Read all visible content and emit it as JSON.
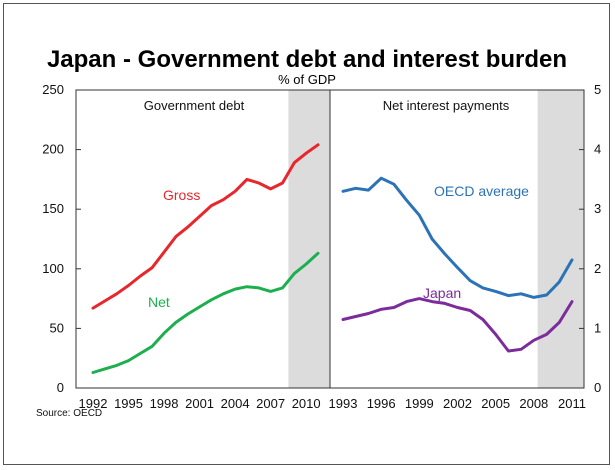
{
  "chart_data": {
    "title": "Japan - Government debt and interest burden",
    "subtitle": "% of GDP",
    "source": "Source: OECD",
    "left_axis_ticks": [
      "0",
      "50",
      "100",
      "150",
      "200",
      "250"
    ],
    "right_axis_ticks": [
      "0",
      "1",
      "2",
      "3",
      "4",
      "5"
    ],
    "panels": [
      {
        "title": "Government debt",
        "type": "line",
        "x_ticks": [
          "1992",
          "1995",
          "1998",
          "2001",
          "2004",
          "2007",
          "2010"
        ],
        "xlim": [
          1992,
          2011
        ],
        "ylim": [
          0,
          250
        ],
        "shaded_x": [
          2008.5,
          2011.3
        ],
        "series": [
          {
            "name": "Gross",
            "color": "#e8262b",
            "x": [
              1992,
              1993,
              1994,
              1995,
              1996,
              1997,
              1998,
              1999,
              2000,
              2001,
              2002,
              2003,
              2004,
              2005,
              2006,
              2007,
              2008,
              2009,
              2010,
              2011
            ],
            "values": [
              67,
              73,
              79,
              86,
              94,
              101,
              114,
              127,
              135,
              144,
              153,
              158,
              165,
              175,
              172,
              167,
              172,
              189,
              197,
              204
            ]
          },
          {
            "name": "Net",
            "color": "#1daf4f",
            "x": [
              1992,
              1993,
              1994,
              1995,
              1996,
              1997,
              1998,
              1999,
              2000,
              2001,
              2002,
              2003,
              2004,
              2005,
              2006,
              2007,
              2008,
              2009,
              2010,
              2011
            ],
            "values": [
              13,
              16,
              19,
              23,
              29,
              35,
              46,
              55,
              62,
              68,
              74,
              79,
              83,
              85,
              84,
              81,
              84,
              96,
              104,
              113
            ]
          }
        ]
      },
      {
        "title": "Net interest payments",
        "type": "line",
        "x_ticks": [
          "1993",
          "1996",
          "1999",
          "2002",
          "2005",
          "2008",
          "2011"
        ],
        "xlim": [
          1993,
          2011
        ],
        "ylim": [
          0,
          5
        ],
        "shaded_x": [
          2008.3,
          2011.3
        ],
        "series": [
          {
            "name": "OECD average",
            "color": "#2b73b6",
            "x": [
              1993,
              1994,
              1995,
              1996,
              1997,
              1998,
              1999,
              2000,
              2001,
              2002,
              2003,
              2004,
              2005,
              2006,
              2007,
              2008,
              2009,
              2010,
              2011
            ],
            "values": [
              3.3,
              3.35,
              3.32,
              3.52,
              3.42,
              3.15,
              2.9,
              2.5,
              2.25,
              2.02,
              1.8,
              1.68,
              1.62,
              1.55,
              1.58,
              1.52,
              1.56,
              1.78,
              2.15
            ]
          },
          {
            "name": "Japan",
            "color": "#7b2c9a",
            "x": [
              1993,
              1994,
              1995,
              1996,
              1997,
              1998,
              1999,
              2000,
              2001,
              2002,
              2003,
              2004,
              2005,
              2006,
              2007,
              2008,
              2009,
              2010,
              2011
            ],
            "values": [
              1.15,
              1.2,
              1.25,
              1.32,
              1.35,
              1.45,
              1.5,
              1.45,
              1.42,
              1.35,
              1.3,
              1.15,
              0.9,
              0.62,
              0.65,
              0.8,
              0.9,
              1.1,
              1.45
            ]
          }
        ]
      }
    ]
  }
}
